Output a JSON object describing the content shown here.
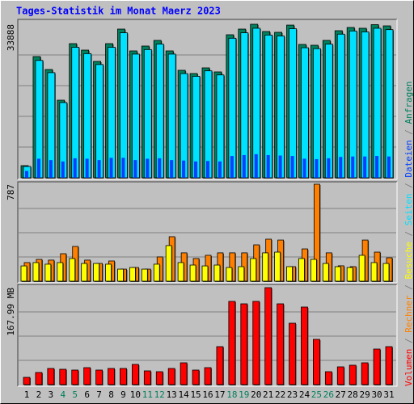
{
  "chart_data": [
    {
      "type": "bar",
      "title": "Tages-Statistik im Monat Maerz 2023",
      "ylim": [
        0,
        33888
      ],
      "yticks": [
        33888
      ],
      "grid": true,
      "series": [
        {
          "name": "Anfragen",
          "color": "#00805c",
          "values": [
            2675,
            26754,
            23900,
            17123,
            29608,
            28181,
            25684,
            29608,
            32818,
            28003,
            29073,
            30321,
            28003,
            23722,
            23008,
            24257,
            23365,
            31570,
            32818,
            33888,
            32283,
            32105,
            33700,
            29430,
            29251,
            30321,
            32462,
            33175,
            33000,
            33800,
            33531
          ]
        },
        {
          "name": "Dateien",
          "color": "#0040ff",
          "values": [
            1500,
            4200,
            3900,
            3600,
            4300,
            4200,
            3900,
            4400,
            4400,
            3900,
            4200,
            4300,
            3900,
            3800,
            3600,
            3700,
            3600,
            4800,
            5000,
            5200,
            5000,
            4900,
            4800,
            4200,
            4100,
            4300,
            4600,
            4700,
            4700,
            4800,
            4700
          ]
        },
        {
          "name": "Seiten",
          "color": "#00e0ff",
          "values": [
            2500,
            25900,
            23200,
            16600,
            28800,
            27400,
            25000,
            28800,
            32000,
            27300,
            28300,
            29500,
            27300,
            23000,
            22400,
            23600,
            22700,
            30800,
            32000,
            33000,
            31500,
            31300,
            32900,
            28700,
            28500,
            29500,
            31700,
            32400,
            32200,
            33000,
            32700
          ]
        }
      ]
    },
    {
      "type": "bar",
      "ylim": [
        0,
        787
      ],
      "yticks": [
        787
      ],
      "grid": true,
      "series": [
        {
          "name": "Besuche",
          "color": "#ffff00",
          "values": [
            124,
            151,
            138,
            151,
            184,
            144,
            144,
            138,
            98,
            111,
            98,
            138,
            289,
            151,
            131,
            124,
            131,
            111,
            118,
            184,
            230,
            236,
            118,
            184,
            177,
            144,
            118,
            111,
            210,
            151,
            144
          ]
        },
        {
          "name": "Rechner",
          "color": "#ff8000",
          "values": [
            151,
            177,
            171,
            223,
            282,
            171,
            144,
            164,
            98,
            111,
            98,
            197,
            361,
            230,
            184,
            210,
            230,
            230,
            230,
            295,
            341,
            334,
            118,
            262,
            787,
            230,
            125,
            118,
            334,
            236,
            190
          ]
        }
      ]
    },
    {
      "type": "bar",
      "ylim": [
        0,
        167.99
      ],
      "yticks": [
        {
          "value": 167.99,
          "label": "167.99 MB"
        }
      ],
      "grid": true,
      "categories": [
        "1",
        "2",
        "3",
        "4",
        "5",
        "6",
        "7",
        "8",
        "9",
        "10",
        "11",
        "12",
        "13",
        "14",
        "15",
        "16",
        "17",
        "18",
        "19",
        "20",
        "21",
        "22",
        "23",
        "24",
        "25",
        "26",
        "27",
        "28",
        "29",
        "30",
        "31"
      ],
      "category_colors": [
        "#000000",
        "#000000",
        "#000000",
        "#00805c",
        "#00805c",
        "#000000",
        "#000000",
        "#000000",
        "#000000",
        "#000000",
        "#00805c",
        "#00805c",
        "#000000",
        "#000000",
        "#000000",
        "#000000",
        "#000000",
        "#00805c",
        "#00805c",
        "#000000",
        "#000000",
        "#000000",
        "#000000",
        "#000000",
        "#00805c",
        "#00805c",
        "#000000",
        "#000000",
        "#000000",
        "#000000",
        "#000000"
      ],
      "legend_separator": " / ",
      "series": [
        {
          "name": "Volumen",
          "color": "#ff0000",
          "values": [
            12.6,
            21,
            28,
            26.6,
            25.2,
            29.4,
            25.2,
            28,
            28,
            35,
            23.8,
            22.4,
            28,
            37.8,
            25.2,
            29.4,
            65.8,
            144.2,
            140,
            144.2,
            167.99,
            140,
            106.4,
            134.4,
            78.4,
            22.4,
            30.8,
            33.6,
            37.8,
            61.6,
            65.8
          ]
        }
      ]
    }
  ]
}
